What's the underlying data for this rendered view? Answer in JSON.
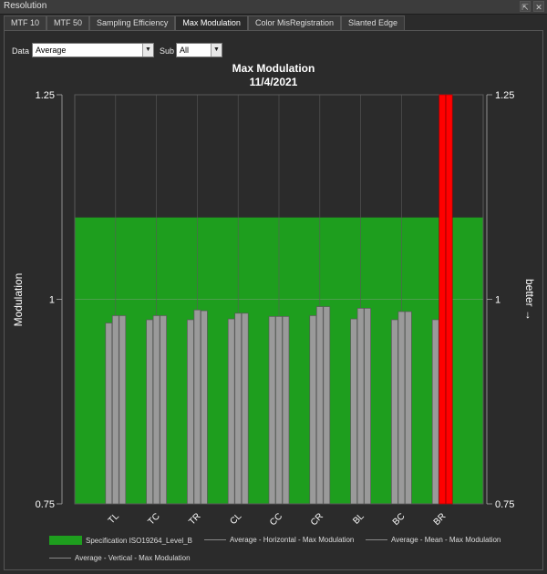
{
  "window": {
    "title": "Resolution",
    "btn_float": "⇱",
    "btn_close": "✕"
  },
  "tabs": [
    "MTF 10",
    "MTF 50",
    "Sampling Efficiency",
    "Max Modulation",
    "Color MisRegistration",
    "Slanted Edge"
  ],
  "active_tab": 3,
  "controls": {
    "data_label": "Data",
    "data_value": "Average",
    "sub_label": "Sub",
    "sub_value": "All"
  },
  "chart_data": {
    "type": "bar",
    "title": "Max Modulation",
    "subtitle": "11/4/2021",
    "ylabel": "Modulation",
    "y2label": "better →",
    "ylim": [
      0.75,
      1.25
    ],
    "yticks": [
      "0.75",
      "1",
      "1.25"
    ],
    "categories": [
      "TL",
      "TC",
      "TR",
      "CL",
      "CC",
      "CR",
      "BL",
      "BC",
      "BR"
    ],
    "series": [
      {
        "name": "Average - Horizontal - Max Modulation",
        "values": [
          0.971,
          0.975,
          0.975,
          0.976,
          0.979,
          0.98,
          0.976,
          0.975,
          0.975
        ]
      },
      {
        "name": "Average - Mean - Max Modulation",
        "values": [
          0.98,
          0.98,
          0.987,
          0.983,
          0.979,
          0.991,
          0.989,
          0.985,
          1.25
        ]
      },
      {
        "name": "Average - Vertical - Max Modulation",
        "values": [
          0.98,
          0.98,
          0.986,
          0.983,
          0.979,
          0.991,
          0.989,
          0.985,
          1.25
        ]
      }
    ],
    "specification": {
      "name": "Specification ISO19264_Level_B",
      "min": 0.75,
      "max": 1.1,
      "color": "#1e9e1e"
    },
    "colors": {
      "bar": "#9a9a9a",
      "fail": "#ff0000",
      "background": "#2b2b2b",
      "grid": "#5a5a5a"
    },
    "grid": true
  }
}
